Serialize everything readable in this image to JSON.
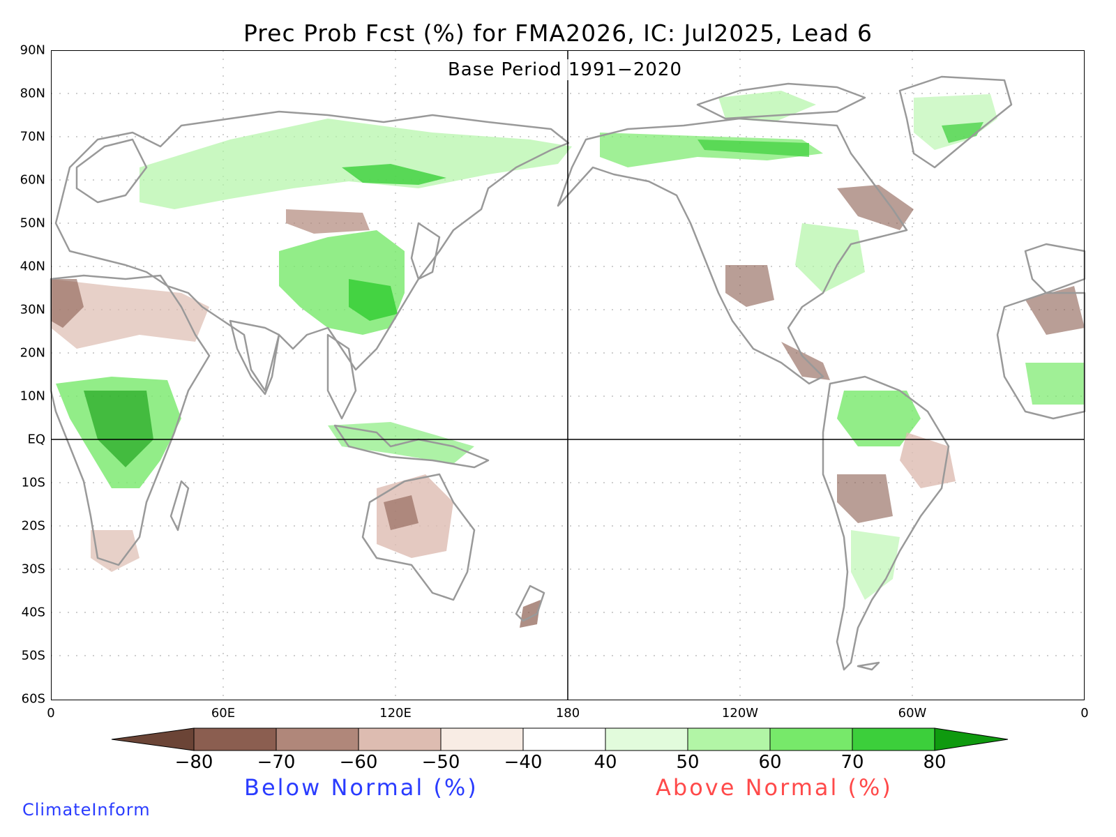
{
  "title": "Prec Prob Fcst (%) for FMA2026, IC: Jul2025, Lead 6",
  "subtitle": "Base Period 1991−2020",
  "lat_labels": [
    "90N",
    "80N",
    "70N",
    "60N",
    "50N",
    "40N",
    "30N",
    "20N",
    "10N",
    "EQ",
    "10S",
    "20S",
    "30S",
    "40S",
    "50S",
    "60S"
  ],
  "lon_labels": [
    "0",
    "60E",
    "120E",
    "180",
    "120W",
    "60W",
    "0"
  ],
  "colorbar": {
    "labels": [
      "−80",
      "−70",
      "−60",
      "−50",
      "−40",
      "40",
      "50",
      "60",
      "70",
      "80"
    ],
    "colors": [
      "#6b4436",
      "#8b5e50",
      "#b0877a",
      "#ddbcb1",
      "#f8ece4",
      "#ffffff",
      "#e2fbdc",
      "#b2f5a6",
      "#77e96a",
      "#3ccf3b",
      "#0f9a0f"
    ],
    "below_label": "Below Normal (%)",
    "above_label": "Above Normal (%)"
  },
  "credit": "ClimateInform",
  "colors": {
    "coastline": "#999999",
    "grid": "#b0b0b0",
    "below_text": "#2a3cff",
    "above_text": "#ff4a4a"
  }
}
